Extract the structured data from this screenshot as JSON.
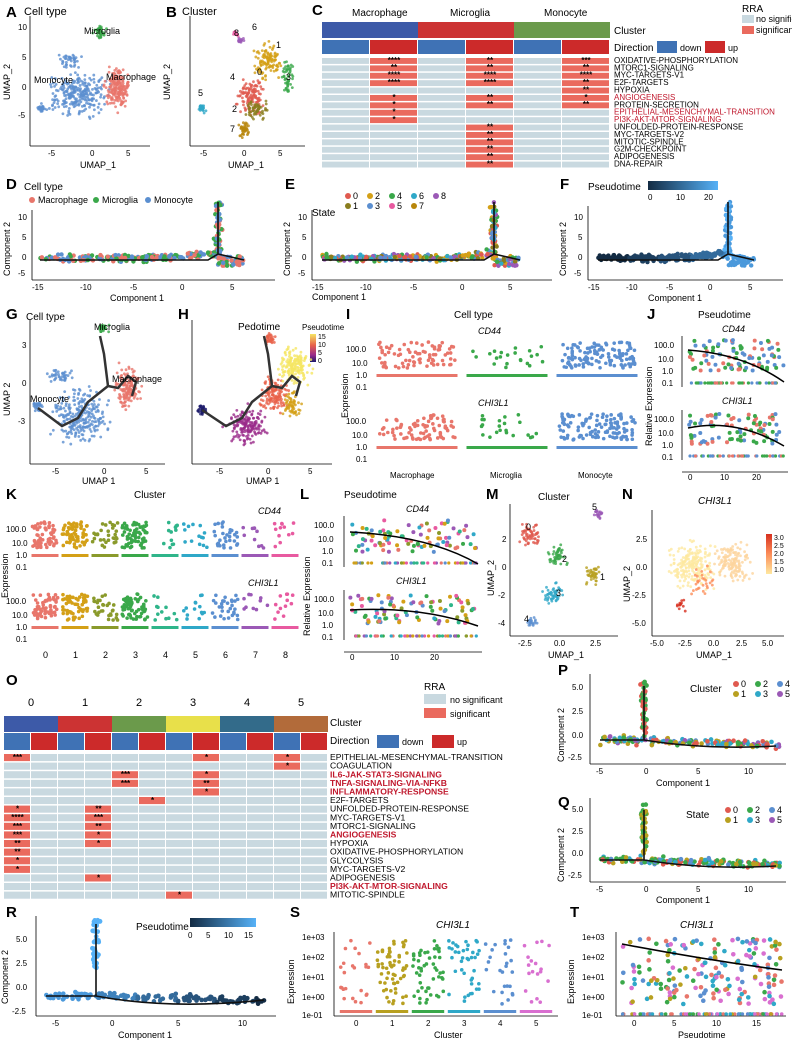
{
  "labels": {
    "A": "A",
    "B": "B",
    "C": "C",
    "D": "D",
    "E": "E",
    "F": "F",
    "G": "G",
    "H": "H",
    "I": "I",
    "J": "J",
    "K": "K",
    "L": "L",
    "M": "M",
    "N": "N",
    "O": "O",
    "P": "P",
    "Q": "Q",
    "R": "R",
    "S": "S",
    "T": "T"
  },
  "panelA": {
    "title": "Cell type",
    "xlab": "UMAP_1",
    "ylab": "UMAP_2",
    "groups": [
      "Microglia",
      "Monocyte",
      "Macrophage"
    ],
    "xticks": [
      "-5",
      "0",
      "5"
    ],
    "yticks": [
      "-5",
      "0",
      "5",
      "10"
    ]
  },
  "panelB": {
    "title": "Cluster",
    "xlab": "UMAP_1",
    "ylab": "UMAP_2",
    "clusters": [
      "8",
      "6",
      "1",
      "4",
      "0",
      "3",
      "5",
      "2",
      "7"
    ],
    "xticks": [
      "-5",
      "0",
      "5"
    ]
  },
  "panelC": {
    "groups": [
      "Macrophage",
      "Microglia",
      "Monocyte"
    ],
    "cluster_label": "Cluster",
    "direction_label": "Direction",
    "down": "down",
    "up": "up",
    "rra_title": "RRA",
    "rra_ns": "no significant",
    "rra_sig": "significant",
    "pathways": [
      "OXIDATIVE-PHOSPHORYLATION",
      "MTORC1-SIGNALING",
      "MYC-TARGETS-V1",
      "E2F-TARGETS",
      "HYPOXIA",
      "ANGIOGENESIS",
      "PROTEIN-SECRETION",
      "EPITHELIAL-MESENCHYMAL-TRANSITION",
      "PI3K-AKT-MTOR-SIGNALING",
      "UNFOLDED-PROTEIN-RESPONSE",
      "MYC-TARGETS-V2",
      "MITOTIC-SPINDLE",
      "G2M-CHECKPOINT",
      "ADIPOGENESIS",
      "DNA-REPAIR"
    ],
    "stars": [
      [
        "",
        "****",
        "",
        "**",
        "",
        "***"
      ],
      [
        "",
        "**",
        "",
        "**",
        "",
        "**"
      ],
      [
        "",
        "****",
        "",
        "****",
        "",
        "****"
      ],
      [
        "",
        "****",
        "",
        "****",
        "",
        "**"
      ],
      [
        "",
        "",
        "",
        "",
        "",
        "**"
      ],
      [
        "",
        "*",
        "",
        "**",
        "",
        "*"
      ],
      [
        "",
        "*",
        "",
        "**",
        "",
        "**"
      ],
      [
        "",
        "*",
        "",
        "",
        "",
        ""
      ],
      [
        "",
        "*",
        "",
        "",
        "",
        ""
      ],
      [
        "",
        "",
        "",
        "**",
        "",
        ""
      ],
      [
        "",
        "",
        "",
        "**",
        "",
        ""
      ],
      [
        "",
        "",
        "",
        "**",
        "",
        ""
      ],
      [
        "",
        "",
        "",
        "**",
        "",
        ""
      ],
      [
        "",
        "",
        "",
        "**",
        "",
        ""
      ],
      [
        "",
        "",
        "",
        "**",
        "",
        ""
      ]
    ]
  },
  "panelD": {
    "title": "Cell type",
    "legend": [
      "Macrophage",
      "Microglia",
      "Monocyte"
    ],
    "xlab": "Component 1",
    "ylab": "Component 2",
    "xticks": [
      "-15",
      "-10",
      "-5",
      "0",
      "5"
    ],
    "yticks": [
      "-5",
      "0",
      "5",
      "10"
    ]
  },
  "panelE": {
    "title": "State",
    "legend": [
      "0",
      "2",
      "4",
      "6",
      "8",
      "1",
      "3",
      "5",
      "7"
    ],
    "xlab": "Component 1",
    "ylab": "Component 2",
    "xticks": [
      "-15",
      "-10",
      "-5",
      "0",
      "5"
    ],
    "yticks": [
      "-5",
      "0",
      "5",
      "10"
    ]
  },
  "panelF": {
    "title": "Pseudotime",
    "scale": [
      "0",
      "10",
      "20"
    ],
    "xlab": "Component 1",
    "ylab": "Component 2",
    "xticks": [
      "-15",
      "-10",
      "-5",
      "0",
      "5"
    ],
    "yticks": [
      "-5",
      "0",
      "5",
      "10"
    ]
  },
  "panelG": {
    "title": "Cell type",
    "groups": [
      "Microglia",
      "Monocyte",
      "Macrophage"
    ],
    "xlab": "UMAP 1",
    "ylab": "UMAP 2",
    "xticks": [
      "-5",
      "0",
      "5"
    ],
    "yticks": [
      "-3",
      "0",
      "3"
    ]
  },
  "panelH": {
    "title": "Pedotime",
    "scale_title": "Pseudotime",
    "scale": [
      "15",
      "10",
      "5",
      "0"
    ],
    "xlab": "UMAP 1",
    "xticks": [
      "-5",
      "0",
      "5"
    ]
  },
  "panelI": {
    "title": "Cell type",
    "gene1": "CD44",
    "gene2": "CHI3L1",
    "ylab": "Expression",
    "yticks": [
      "100.0",
      "10.0",
      "1.0",
      "0.1"
    ],
    "xcats": [
      "Macrophage",
      "Microglia",
      "Monocyte"
    ]
  },
  "panelJ": {
    "title": "Pseudotime",
    "gene1": "CD44",
    "gene2": "CHI3L1",
    "ylab": "Relative Expression",
    "yticks": [
      "100.0",
      "10.0",
      "1.0",
      "0.1"
    ],
    "xticks": [
      "0",
      "10",
      "20"
    ]
  },
  "panelK": {
    "title": "Cluster",
    "gene1": "CD44",
    "gene2": "CHI3L1",
    "ylab": "Expression",
    "yticks": [
      "100.0",
      "10.0",
      "1.0",
      "0.1"
    ],
    "xticks": [
      "0",
      "1",
      "2",
      "3",
      "4",
      "5",
      "6",
      "7",
      "8"
    ]
  },
  "panelL": {
    "title": "Pseudotime",
    "gene1": "CD44",
    "gene2": "CHI3L1",
    "ylab": "Relative Expression",
    "yticks": [
      "100.0",
      "10.0",
      "1.0",
      "0.1"
    ],
    "xticks": [
      "0",
      "10",
      "20"
    ]
  },
  "panelM": {
    "title": "Cluster",
    "xlab": "UMAP_1",
    "ylab": "UMAP_2",
    "clusters": [
      "0",
      "5",
      "2",
      "1",
      "3",
      "4"
    ],
    "xticks": [
      "-2.5",
      "0.0",
      "2.5"
    ],
    "yticks": [
      "-4",
      "-2",
      "0",
      "2"
    ]
  },
  "panelN": {
    "title": "CHI3L1",
    "scale": [
      "3.0",
      "2.5",
      "2.0",
      "1.5",
      "1.0"
    ],
    "xlab": "UMAP_1",
    "ylab": "UMAP_2",
    "xticks": [
      "-5.0",
      "-2.5",
      "0.0",
      "2.5",
      "5.0"
    ],
    "yticks": [
      "-5.0",
      "-2.5",
      "0.0",
      "2.5"
    ]
  },
  "panelO": {
    "groups": [
      "0",
      "1",
      "2",
      "3",
      "4",
      "5"
    ],
    "cluster_label": "Cluster",
    "direction_label": "Direction",
    "down": "down",
    "up": "up",
    "rra_title": "RRA",
    "rra_ns": "no significant",
    "rra_sig": "significant",
    "pathways": [
      "EPITHELIAL-MESENCHYMAL-TRANSITION",
      "COAGULATION",
      "IL6-JAK-STAT3-SIGNALING",
      "TNFA-SIGNALING-VIA-NFKB",
      "INFLAMMATORY-RESPONSE",
      "E2F-TARGETS",
      "UNFOLDED-PROTEIN-RESPONSE",
      "MYC-TARGETS-V1",
      "MTORC1-SIGNALING",
      "ANGIOGENESIS",
      "HYPOXIA",
      "OXIDATIVE-PHOSPHORYLATION",
      "GLYCOLYSIS",
      "MYC-TARGETS-V2",
      "ADIPOGENESIS",
      "PI3K-AKT-MTOR-SIGNALING",
      "MITOTIC-SPINDLE"
    ],
    "stars": [
      [
        "***",
        "",
        "",
        "",
        "",
        "",
        "",
        "*",
        "",
        "",
        "*",
        ""
      ],
      [
        "",
        "",
        "",
        "",
        "",
        "",
        "",
        "",
        "",
        "",
        "*",
        ""
      ],
      [
        "",
        "",
        "",
        "",
        "***",
        "",
        "",
        "*",
        "",
        "",
        "",
        ""
      ],
      [
        "",
        "",
        "",
        "",
        "***",
        "",
        "",
        "**",
        "",
        "",
        "",
        ""
      ],
      [
        "",
        "",
        "",
        "",
        "",
        "",
        "",
        "*",
        "",
        "",
        "",
        ""
      ],
      [
        "",
        "",
        "",
        "",
        "",
        "*",
        "",
        "",
        "",
        "",
        "",
        ""
      ],
      [
        "*",
        "",
        "",
        "**",
        "",
        "",
        "",
        "",
        "",
        "",
        "",
        ""
      ],
      [
        "****",
        "",
        "",
        "***",
        "",
        "",
        "",
        "",
        "",
        "",
        "",
        ""
      ],
      [
        "***",
        "",
        "",
        "**",
        "",
        "",
        "",
        "",
        "",
        "",
        "",
        ""
      ],
      [
        "***",
        "",
        "",
        "*",
        "",
        "",
        "",
        "",
        "",
        "",
        "",
        ""
      ],
      [
        "**",
        "",
        "",
        "*",
        "",
        "",
        "",
        "",
        "",
        "",
        "",
        ""
      ],
      [
        "**",
        "",
        "",
        "",
        "",
        "",
        "",
        "",
        "",
        "",
        "",
        ""
      ],
      [
        "*",
        "",
        "",
        "",
        "",
        "",
        "",
        "",
        "",
        "",
        "",
        ""
      ],
      [
        "*",
        "",
        "",
        "",
        "",
        "",
        "",
        "",
        "",
        "",
        "",
        ""
      ],
      [
        "",
        "",
        "",
        "*",
        "",
        "",
        "",
        "",
        "",
        "",
        "",
        ""
      ],
      [
        "",
        "",
        "",
        "",
        "",
        "",
        "",
        "",
        "",
        "",
        "",
        ""
      ],
      [
        "",
        "",
        "",
        "",
        "",
        "",
        "*",
        "",
        "",
        "",
        "",
        ""
      ]
    ]
  },
  "panelP": {
    "title": "Cluster",
    "legend": [
      "0",
      "2",
      "4",
      "1",
      "3",
      "5"
    ],
    "xlab": "Component 1",
    "ylab": "Component 2",
    "xticks": [
      "-5",
      "0",
      "5",
      "10"
    ],
    "yticks": [
      "5.0",
      "2.5",
      "0.0",
      "-2.5"
    ]
  },
  "panelQ": {
    "title": "State",
    "legend": [
      "0",
      "2",
      "4",
      "1",
      "3",
      "5"
    ],
    "xlab": "Component 1",
    "ylab": "Component 2",
    "xticks": [
      "-5",
      "0",
      "5",
      "10"
    ],
    "yticks": [
      "5.0",
      "2.5",
      "0.0",
      "-2.5"
    ]
  },
  "panelR": {
    "title": "Pseudotime",
    "scale": [
      "0",
      "5",
      "10",
      "15"
    ],
    "xlab": "Component 1",
    "ylab": "Component 2",
    "xticks": [
      "-5",
      "0",
      "5",
      "10"
    ],
    "yticks": [
      "5.0",
      "2.5",
      "0.0",
      "-2.5"
    ]
  },
  "panelS": {
    "title": "CHI3L1",
    "xlab": "Cluster",
    "ylab": "Expression",
    "yticks": [
      "1e+03",
      "1e+02",
      "1e+01",
      "1e+00",
      "1e-01"
    ],
    "xticks": [
      "0",
      "1",
      "2",
      "3",
      "4",
      "5"
    ]
  },
  "panelT": {
    "title": "CHI3L1",
    "xlab": "Pseudotime",
    "ylab": "Expression",
    "yticks": [
      "1e+03",
      "1e+02",
      "1e+01",
      "1e+00",
      "1e-01"
    ],
    "xticks": [
      "0",
      "5",
      "10",
      "15"
    ]
  },
  "colors": {
    "macrophage": "#e8766b",
    "microglia": "#3aa84a",
    "monocyte": "#5b8fd0",
    "c_blue": "#3d5aa8",
    "c_red": "#cc3333",
    "c_green": "#6b9a4b",
    "c_yellow": "#e8e04a",
    "c_navy": "#336b8a",
    "c_brown": "#b26b3a",
    "dir_down": "#3f72b5",
    "dir_up": "#cc2a2a",
    "ns": "#c9d9e0",
    "sig": "#ea6a5e",
    "highlight": "#c0182d"
  }
}
